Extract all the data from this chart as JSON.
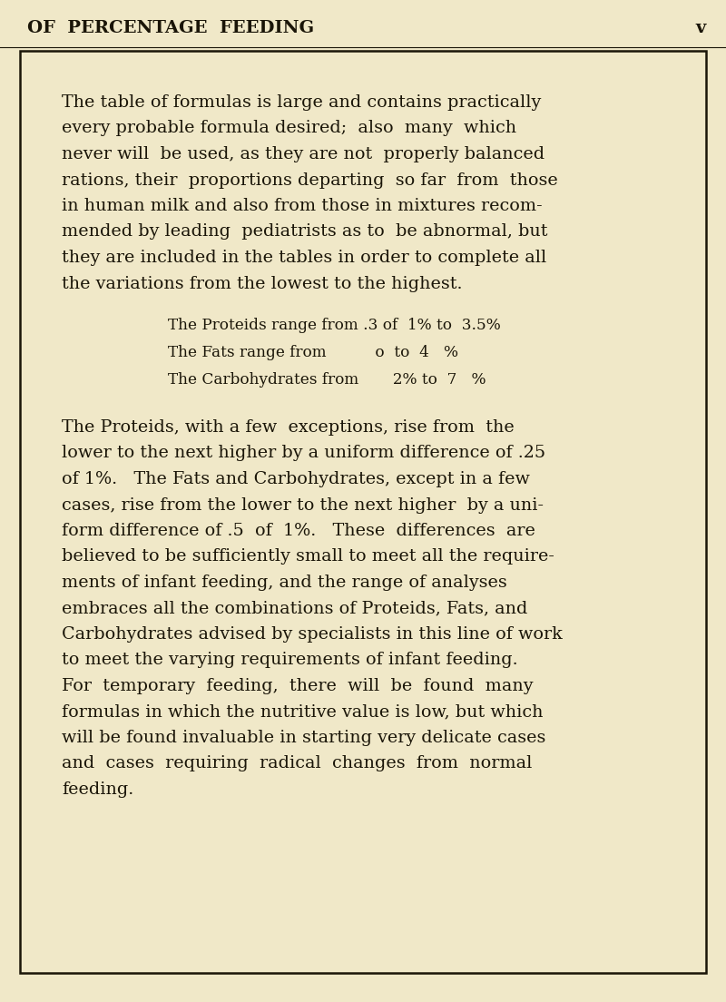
{
  "background_color": "#f0e8c8",
  "text_color": "#1a1508",
  "header_text": "OF  PERCENTAGE  FEEDING",
  "header_right": "v",
  "header_fontsize": 14,
  "body_fontsize": 13.8,
  "range_fontsize": 12.2,
  "paragraph1_lines": [
    "The table of formulas is large and contains practically",
    "every probable formula desired;  also  many  which",
    "never will  be used, as they are not  properly balanced",
    "rations, their  proportions departing  so far  from  those",
    "in human milk and also from those in mixtures recom-",
    "mended by leading  pediatrists as to  be abnormal, but",
    "they are included in the tables in order to complete all",
    "the variations from the lowest to the highest."
  ],
  "range_lines": [
    "The Proteids range from .3 of  1% to  3.5%",
    "The Fats range from                o  to 4   %",
    "The Carbohydrates from          2% to  7   %"
  ],
  "paragraph2_lines": [
    "The Proteids, with a few  exceptions, rise from  the",
    "lower to the next higher by a uniform difference of .25",
    "of 1%.   The Fats and Carbohydrates, except in a few",
    "cases, rise from the lower to the next higher  by a uni-",
    "form difference of .5  of  1%.   These  differences  are",
    "believed to be sufficiently small to meet all the require-",
    "ments of infant feeding, and the range of analyses",
    "embraces all the combinations of Proteids, Fats, and",
    "Carbohydrates advised by specialists in this line of work",
    "to meet the varying requirements of infant feeding."
  ],
  "paragraph3_lines": [
    "For  temporary  feeding,  there  will  be  found  many",
    "formulas in which the nutritive value is low, but which",
    "will be found invaluable in starting very delicate cases",
    "and  cases  requiring  radical  changes  from  normal",
    "feeding."
  ]
}
